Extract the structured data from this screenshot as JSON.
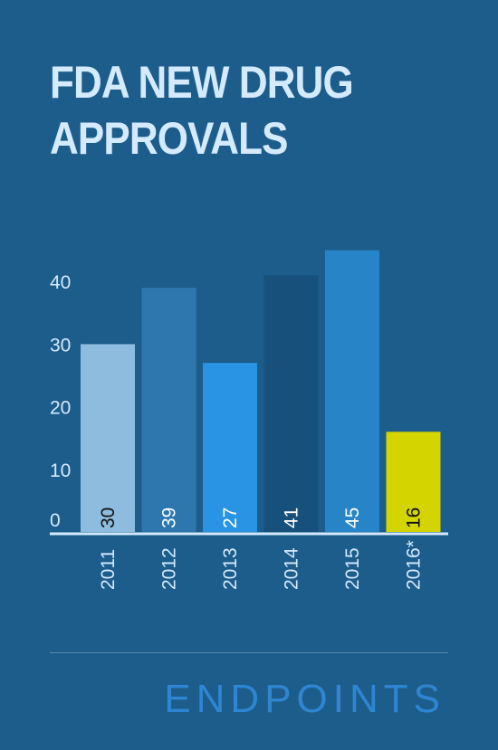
{
  "title": "FDA NEW DRUG APPROVALS",
  "brand": "ENDPOINTS",
  "chart_data": {
    "type": "bar",
    "title": "FDA NEW DRUG APPROVALS",
    "xlabel": "",
    "ylabel": "",
    "categories": [
      "2011",
      "2012",
      "2013",
      "2014",
      "2015",
      "2016*"
    ],
    "values": [
      30,
      39,
      27,
      41,
      45,
      16
    ],
    "bar_colors": [
      "#8dbcdf",
      "#2d77ae",
      "#2994e3",
      "#17517b",
      "#2785c7",
      "#d3d400"
    ],
    "data_label_colors": [
      "#111111",
      "#ffffff",
      "#ffffff",
      "#ffffff",
      "#ffffff",
      "#111111"
    ],
    "yticks": [
      0,
      10,
      20,
      30,
      40
    ],
    "ylim": [
      0,
      46
    ],
    "grid": false,
    "legend": "none",
    "colors": {
      "background": "#1d5d8b",
      "title": "#d3eaff",
      "axis_text": "#d3eaff",
      "baseline": "#d3eaff",
      "brand": "#2e86d2"
    }
  }
}
